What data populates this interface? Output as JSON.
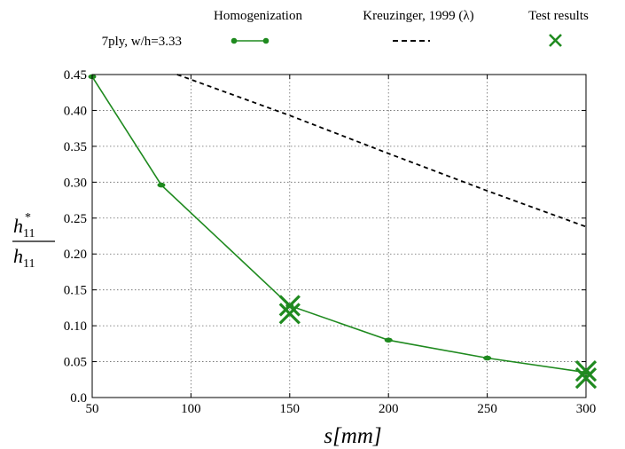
{
  "chart_data": {
    "type": "line",
    "title": "",
    "subtitle": "",
    "xlabel": "s[mm]",
    "ylabel_num_base": "h",
    "ylabel_num_sub": "11",
    "ylabel_num_sup": "*",
    "ylabel_den_base": "h",
    "ylabel_den_sub": "11",
    "xlim": [
      50,
      300
    ],
    "ylim": [
      0.0,
      0.45
    ],
    "xticks": [
      50,
      100,
      150,
      200,
      250,
      300
    ],
    "xtick_labels": [
      "50",
      "100",
      "150",
      "200",
      "250",
      "300"
    ],
    "yticks": [
      0.0,
      0.05,
      0.1,
      0.15,
      0.2,
      0.25,
      0.3,
      0.35,
      0.4,
      0.45
    ],
    "ytick_labels": [
      "0.0",
      "0.05",
      "0.10",
      "0.15",
      "0.20",
      "0.25",
      "0.30",
      "0.35",
      "0.40",
      "0.45"
    ],
    "grid": true,
    "legend_position": "top",
    "legend_row_label": "7ply, w/h=3.33",
    "series": [
      {
        "name": "Homogenization",
        "style": "line-dot",
        "color": "#1f8a1f",
        "x": [
          50,
          85,
          150,
          200,
          250,
          300
        ],
        "y": [
          0.447,
          0.296,
          0.128,
          0.08,
          0.055,
          0.035
        ]
      },
      {
        "name": "Kreuzinger, 1999 (λ)",
        "style": "dashed",
        "color": "#000000",
        "x": [
          93,
          150,
          200,
          250,
          300
        ],
        "y": [
          0.45,
          0.393,
          0.34,
          0.288,
          0.238
        ]
      },
      {
        "name": "Test results",
        "style": "cross",
        "color": "#1f8a1f",
        "x": [
          150,
          150,
          300,
          300
        ],
        "y": [
          0.128,
          0.117,
          0.037,
          0.027
        ]
      }
    ]
  }
}
